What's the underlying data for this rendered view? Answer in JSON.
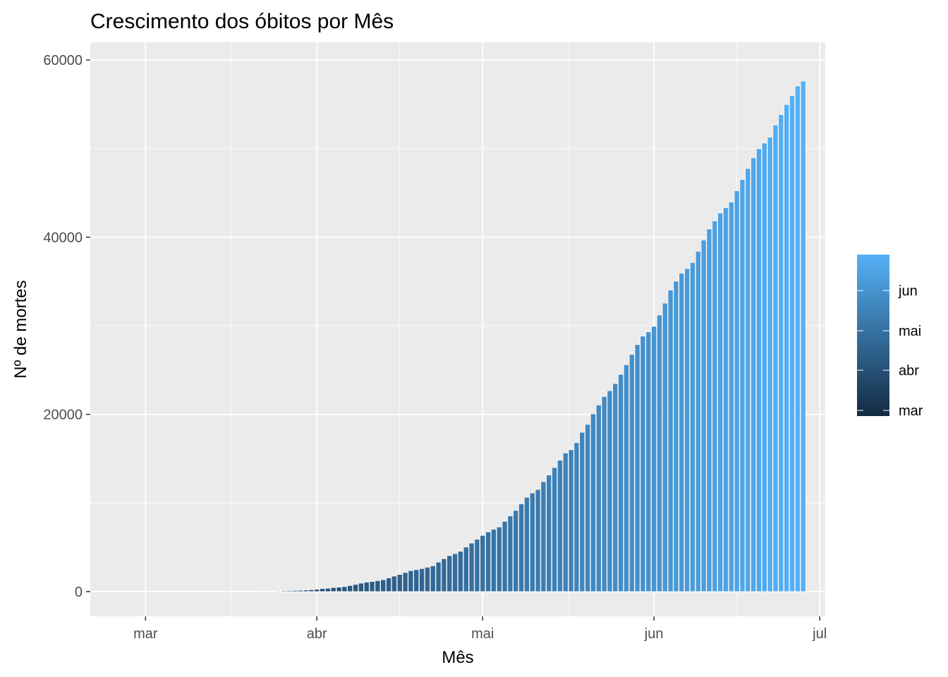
{
  "chart_data": {
    "type": "bar",
    "title": "Crescimento dos óbitos por Mês",
    "xlabel": "Mês",
    "ylabel": "Nº de mortes",
    "x_axis": {
      "type": "date",
      "range": [
        "2020-02-20",
        "2020-07-02"
      ],
      "ticks": [
        {
          "label": "mar",
          "date": "2020-03-01"
        },
        {
          "label": "abr",
          "date": "2020-04-01"
        },
        {
          "label": "mai",
          "date": "2020-05-01"
        },
        {
          "label": "jun",
          "date": "2020-06-01"
        },
        {
          "label": "jul",
          "date": "2020-07-01"
        }
      ]
    },
    "ylim": [
      -2800,
      62000
    ],
    "y_ticks": [
      0,
      20000,
      40000,
      60000
    ],
    "grid": true,
    "panel_background": "#EBEBEB",
    "first_bar_date": "2020-03-17",
    "values": [
      1,
      3,
      6,
      11,
      15,
      25,
      34,
      46,
      59,
      77,
      92,
      114,
      136,
      159,
      201,
      242,
      327,
      359,
      445,
      486,
      553,
      667,
      800,
      941,
      1056,
      1124,
      1223,
      1328,
      1532,
      1736,
      1924,
      2141,
      2354,
      2462,
      2587,
      2741,
      2906,
      3313,
      3704,
      4045,
      4271,
      4543,
      5017,
      5466,
      5901,
      6329,
      6724,
      7025,
      7288,
      7914,
      8536,
      9146,
      9897,
      10627,
      11123,
      11519,
      12400,
      13149,
      13993,
      14817,
      15633,
      15996,
      16792,
      17971,
      18859,
      20047,
      21048,
      22013,
      22666,
      23473,
      24512,
      25598,
      26754,
      27878,
      28834,
      29314,
      29937,
      31199,
      32548,
      34021,
      35026,
      35930,
      36455,
      37134,
      38406,
      39680,
      40919,
      41828,
      42720,
      43332,
      43959,
      45241,
      46510,
      47748,
      48954,
      49976,
      50617,
      51271,
      52645,
      53830,
      54971,
      55961,
      57070,
      57622
    ],
    "legend": {
      "position": "right",
      "type": "colorbar",
      "labels": [
        "jun",
        "mai",
        "abr",
        "mar"
      ],
      "colors": {
        "low": "#132B43",
        "high": "#56B1F7"
      }
    }
  }
}
